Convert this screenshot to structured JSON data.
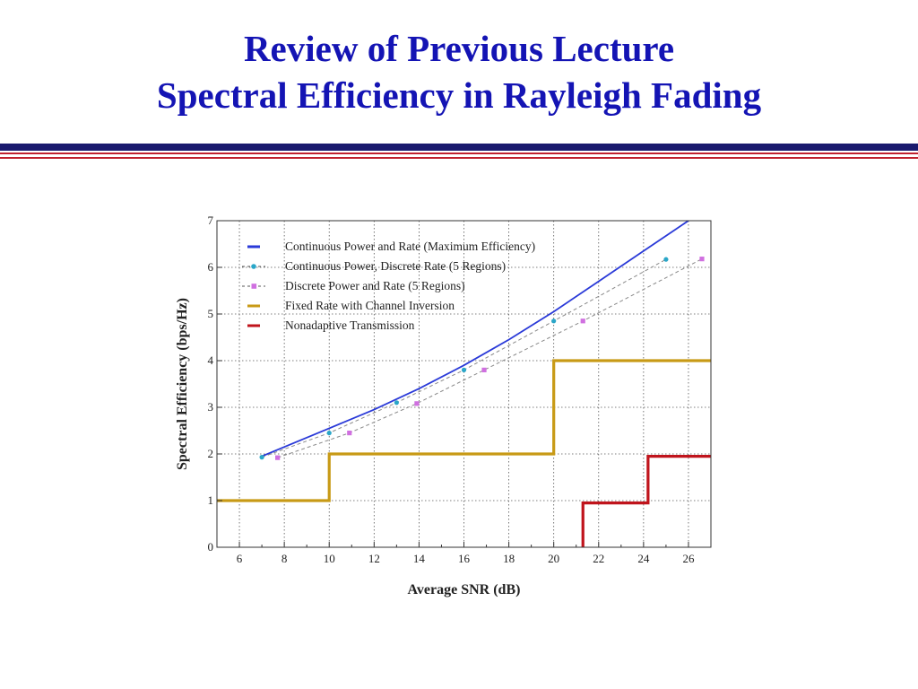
{
  "slide": {
    "title_line1": "Review of Previous Lecture",
    "title_line2": "Spectral Efficiency in Rayleigh Fading",
    "title_color": "#1414b4",
    "rule_colors": [
      "#1a1a6e",
      "#c0202e"
    ]
  },
  "chart_data": {
    "type": "line",
    "xlabel": "Average SNR (dB)",
    "ylabel": "Spectral Efficiency (bps/Hz)",
    "xlim": [
      5,
      27
    ],
    "ylim": [
      0,
      7
    ],
    "xticks": [
      6,
      8,
      10,
      12,
      14,
      16,
      18,
      20,
      22,
      24,
      26
    ],
    "yticks": [
      0,
      1,
      2,
      3,
      4,
      5,
      6,
      7
    ],
    "grid": true,
    "legend_position": "top-left",
    "series": [
      {
        "name": "Continuous Power and Rate (Maximum Efficiency)",
        "style": "solid",
        "color": "#2a3ad8",
        "x": [
          7,
          8,
          10,
          12,
          14,
          16,
          18,
          20,
          22,
          24,
          26,
          26.4
        ],
        "y": [
          1.95,
          2.15,
          2.55,
          2.95,
          3.4,
          3.9,
          4.45,
          5.05,
          5.7,
          6.35,
          7.0,
          7.1
        ]
      },
      {
        "name": "Continuous Power, Discrete Rate (5 Regions)",
        "style": "dashed-dots",
        "color": "#2aa6c8",
        "x": [
          7,
          10,
          13,
          16,
          20,
          25
        ],
        "y": [
          1.93,
          2.45,
          3.1,
          3.8,
          4.85,
          6.17
        ]
      },
      {
        "name": "Discrete Power and Rate (5 Regions)",
        "style": "dashed-dots",
        "color": "#d070e0",
        "x": [
          7.7,
          10.9,
          13.9,
          16.9,
          21.3,
          26.6
        ],
        "y": [
          1.92,
          2.45,
          3.08,
          3.8,
          4.85,
          6.18
        ]
      },
      {
        "name": "Fixed Rate with Channel Inversion",
        "style": "step",
        "color": "#c89a16",
        "x": [
          5,
          10,
          10,
          20,
          20,
          27
        ],
        "y": [
          1,
          1,
          2,
          2,
          4,
          4
        ]
      },
      {
        "name": "Nonadaptive Transmission",
        "style": "step",
        "color": "#c0141c",
        "x": [
          21.3,
          21.3,
          24.2,
          24.2,
          27
        ],
        "y": [
          0,
          0.95,
          0.95,
          1.95,
          1.95
        ]
      }
    ]
  }
}
